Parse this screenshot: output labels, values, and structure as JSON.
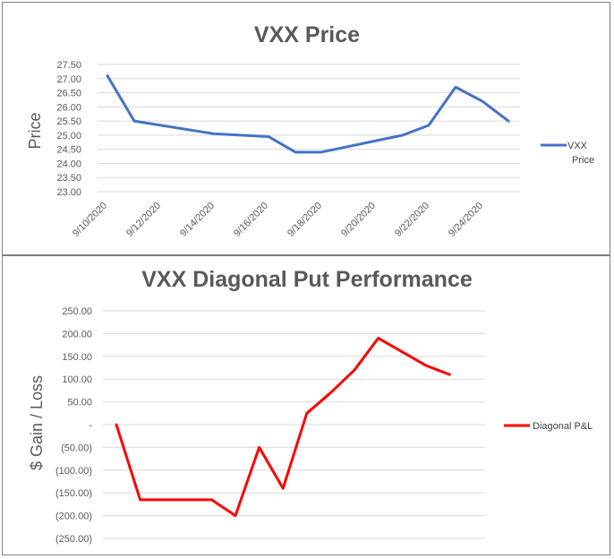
{
  "chart_data": [
    {
      "type": "line",
      "title": "VXX Price",
      "xlabel": "",
      "ylabel": "Price",
      "ylim": [
        23.0,
        27.5
      ],
      "yticks": [
        "27.50",
        "27.00",
        "26.50",
        "26.00",
        "25.50",
        "25.00",
        "24.50",
        "24.00",
        "23.50",
        "23.00"
      ],
      "x_tick_labels": [
        "9/10/2020",
        "9/12/2020",
        "9/14/2020",
        "9/16/2020",
        "9/18/2020",
        "9/20/2020",
        "9/22/2020",
        "9/24/2020"
      ],
      "x": [
        "9/10/2020",
        "9/11/2020",
        "9/14/2020",
        "9/16/2020",
        "9/17/2020",
        "9/18/2020",
        "9/21/2020",
        "9/22/2020",
        "9/23/2020",
        "9/24/2020",
        "9/25/2020"
      ],
      "legend": "VXX Price",
      "legend_lines": [
        "VXX",
        "Price"
      ],
      "color": "#4472C4",
      "series": [
        {
          "name": "VXX Price",
          "values": [
            27.1,
            25.5,
            25.05,
            24.95,
            24.4,
            24.4,
            25.0,
            25.35,
            26.7,
            26.2,
            25.5
          ]
        }
      ]
    },
    {
      "type": "line",
      "title": "VXX Diagonal Put Performance",
      "xlabel": "",
      "ylabel": "$ Gain / Loss",
      "ylim": [
        -250,
        250
      ],
      "yticks": [
        "250.00",
        "200.00",
        "150.00",
        "100.00",
        "50.00",
        "-",
        "(50.00)",
        "(100.00)",
        "(150.00)",
        "(200.00)",
        "(250.00)"
      ],
      "legend": "Diagonal P&L",
      "color": "#FF0000",
      "series": [
        {
          "name": "Diagonal P&L",
          "values": [
            0,
            -165,
            -165,
            -165,
            -165,
            -200,
            -50,
            -140,
            25,
            70,
            120,
            190,
            160,
            130,
            110
          ]
        }
      ]
    }
  ]
}
